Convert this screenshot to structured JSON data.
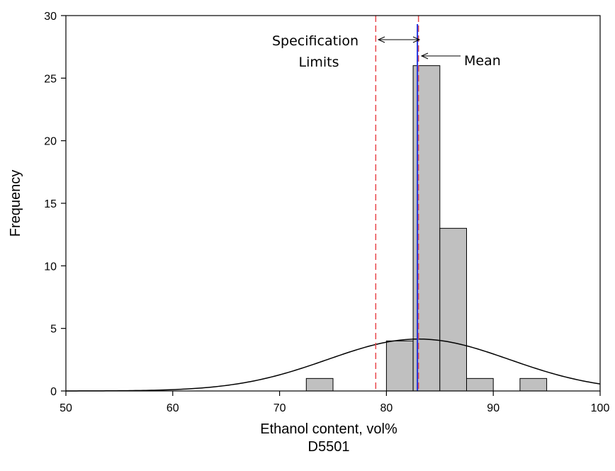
{
  "chart_data": {
    "type": "bar",
    "xlabel": "Ethanol content, vol%",
    "xlabel2": "D5501",
    "ylabel": "Frequency",
    "xlim": [
      50,
      100
    ],
    "ylim": [
      0,
      30
    ],
    "xticks": [
      50,
      60,
      70,
      80,
      90,
      100
    ],
    "yticks": [
      0,
      5,
      10,
      15,
      20,
      25,
      30
    ],
    "grid": false,
    "histogram_bins": [
      {
        "start": 72.5,
        "end": 75.0,
        "count": 1
      },
      {
        "start": 80.0,
        "end": 82.5,
        "count": 4
      },
      {
        "start": 82.5,
        "end": 85.0,
        "count": 26
      },
      {
        "start": 85.0,
        "end": 87.5,
        "count": 13
      },
      {
        "start": 87.5,
        "end": 90.0,
        "count": 1
      },
      {
        "start": 92.5,
        "end": 95.0,
        "count": 1
      }
    ],
    "normal_curve": {
      "mean": 83.0,
      "sd": 8.5,
      "peak": 4.15
    },
    "spec_limits": [
      79.0,
      83.0
    ],
    "mean_line": 82.9,
    "annotations": {
      "spec_line1": "Specification",
      "spec_line2": "Limits",
      "mean": "Mean"
    },
    "colors": {
      "bar_fill": "#c0c0c0",
      "spec_line": "#e8474b",
      "mean_line": "#2233dd",
      "curve": "#000000"
    }
  }
}
